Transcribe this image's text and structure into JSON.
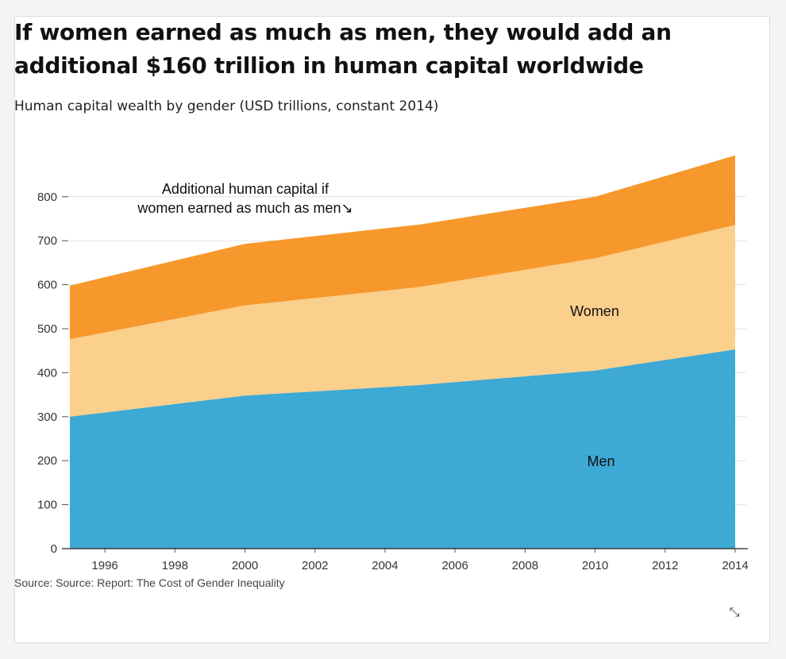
{
  "header": {
    "title": "If women earned as much as men, they would add an additional $160 trillion in human capital worldwide",
    "subtitle": "Human capital wealth by gender (USD trillions, constant 2014)"
  },
  "footer": {
    "source": "Source: Source: Report: The Cost of Gender Inequality",
    "expand_icon": "expand-icon"
  },
  "chart_data": {
    "type": "area",
    "stacked": true,
    "x": [
      1995,
      2000,
      2005,
      2010,
      2014
    ],
    "xlim": [
      1995,
      2014
    ],
    "xticks": [
      1996,
      1998,
      2000,
      2002,
      2004,
      2006,
      2008,
      2010,
      2012,
      2014
    ],
    "ylim": [
      0,
      900
    ],
    "yticks": [
      0,
      100,
      200,
      300,
      400,
      500,
      600,
      700,
      800
    ],
    "series": [
      {
        "name": "Men",
        "values": [
          300,
          348,
          372,
          405,
          453
        ],
        "color": "#3da9d4"
      },
      {
        "name": "Women",
        "values": [
          176,
          205,
          223,
          255,
          283
        ],
        "color": "#fbcf8c"
      },
      {
        "name": "Additional human capital if women earned as much as men",
        "values": [
          122,
          140,
          142,
          140,
          158
        ],
        "color": "#f7982c"
      }
    ],
    "annotations": [
      {
        "text_lines": [
          "Additional human capital if",
          "women earned as much as men↘"
        ],
        "series": "Additional human capital if women earned as much as men"
      },
      {
        "text": "Women",
        "series": "Women"
      },
      {
        "text": "Men",
        "series": "Men"
      }
    ],
    "title": "If women earned as much as men, they would add an additional $160 trillion in human capital worldwide",
    "xlabel": "",
    "ylabel": "",
    "grid": true
  }
}
